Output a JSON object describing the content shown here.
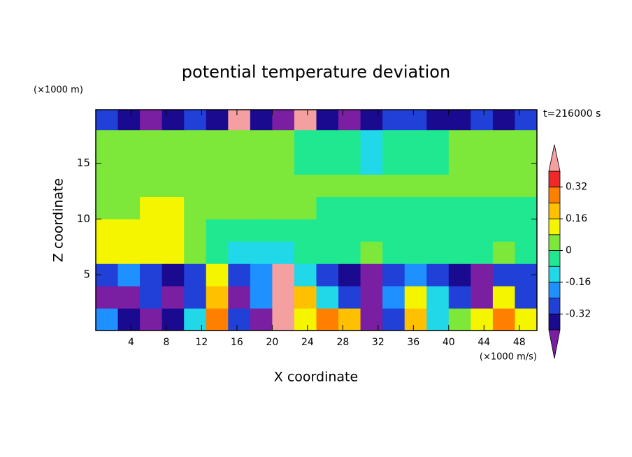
{
  "chart_data": {
    "type": "contour",
    "title": "potential temperature deviation",
    "xlabel": "X coordinate",
    "ylabel": "Z coordinate",
    "x_unit": "(×1000 m/s)",
    "y_unit": "(×1000 m)",
    "time_label": "t=216000 s",
    "xlim": [
      0,
      50
    ],
    "ylim": [
      0,
      19.8
    ],
    "xticks": [
      4,
      8,
      12,
      16,
      20,
      24,
      28,
      32,
      36,
      40,
      44,
      48
    ],
    "yticks": [
      5,
      10,
      15
    ],
    "x": [
      1.25,
      3.75,
      6.25,
      8.75,
      11.25,
      13.75,
      16.25,
      18.75,
      21.25,
      23.75,
      26.25,
      28.75,
      31.25,
      33.75,
      36.25,
      38.75,
      41.25,
      43.75,
      46.25,
      48.75
    ],
    "y": [
      1,
      3,
      5,
      7,
      9,
      11,
      13,
      15,
      17,
      19
    ],
    "values": [
      [
        -0.2,
        -0.36,
        -0.44,
        -0.36,
        -0.1,
        0.3,
        -0.3,
        -0.44,
        0.5,
        0.1,
        0.3,
        0.2,
        -0.44,
        -0.3,
        0.2,
        -0.1,
        0,
        0.1,
        0.3,
        0.1
      ],
      [
        -0.44,
        -0.44,
        -0.3,
        -0.44,
        -0.3,
        0.2,
        -0.44,
        -0.2,
        0.5,
        0.2,
        -0.1,
        -0.3,
        -0.44,
        -0.2,
        0.1,
        -0.1,
        -0.3,
        -0.44,
        0.1,
        -0.3
      ],
      [
        -0.3,
        -0.2,
        -0.3,
        -0.36,
        -0.3,
        0.1,
        -0.3,
        -0.2,
        0.5,
        -0.1,
        -0.3,
        -0.36,
        -0.44,
        -0.3,
        -0.2,
        -0.3,
        -0.36,
        -0.44,
        -0.3,
        -0.3
      ],
      [
        0.1,
        0.15,
        0.15,
        0.1,
        0.02,
        -0.05,
        -0.1,
        -0.12,
        -0.1,
        -0.05,
        -0.05,
        -0.05,
        0.02,
        -0.05,
        -0.05,
        -0.05,
        -0.05,
        -0.05,
        0.02,
        -0.05
      ],
      [
        0.1,
        0.15,
        0.12,
        0.1,
        0.05,
        -0.05,
        -0.05,
        -0.05,
        -0.05,
        -0.05,
        -0.05,
        -0.05,
        -0.05,
        -0.05,
        -0.05,
        -0.05,
        -0.05,
        -0.05,
        -0.05,
        -0.05
      ],
      [
        0.02,
        0.05,
        0.1,
        0.1,
        0.05,
        0.02,
        0.02,
        0.02,
        0.02,
        0.02,
        -0.05,
        -0.05,
        -0.05,
        -0.05,
        -0.05,
        -0.05,
        -0.05,
        -0.05,
        -0.05,
        -0.05
      ],
      [
        0.05,
        0.05,
        0.05,
        0.05,
        0.05,
        0.05,
        0.05,
        0.05,
        0.05,
        0.02,
        0.02,
        0.02,
        0.02,
        0.02,
        0.02,
        0.02,
        0.02,
        0.02,
        0.02,
        0.02
      ],
      [
        0.05,
        0.05,
        0.05,
        0.05,
        0.05,
        0.05,
        0.05,
        0.05,
        0.02,
        -0.05,
        -0.05,
        -0.05,
        -0.1,
        -0.05,
        -0.05,
        -0.05,
        0.05,
        0.05,
        0.05,
        0.05
      ],
      [
        0.05,
        0.05,
        0.05,
        0.05,
        0.05,
        0.05,
        0.05,
        0.05,
        0.05,
        -0.05,
        -0.05,
        -0.05,
        -0.1,
        -0.05,
        -0.05,
        -0.05,
        0.05,
        0.05,
        0.05,
        0.05
      ],
      [
        -0.3,
        -0.36,
        -0.44,
        -0.36,
        -0.3,
        -0.36,
        0.5,
        -0.36,
        -0.44,
        0.5,
        -0.36,
        -0.44,
        -0.36,
        -0.3,
        -0.3,
        -0.36,
        -0.36,
        -0.3,
        -0.36,
        -0.3
      ]
    ],
    "levels": [
      -0.4,
      -0.32,
      -0.24,
      -0.16,
      -0.08,
      0,
      0.08,
      0.16,
      0.24,
      0.32,
      0.4
    ],
    "colors": [
      "#7b1fa2",
      "#1a0a8f",
      "#2040d8",
      "#1e90ff",
      "#20d8e8",
      "#20e890",
      "#7ee83a",
      "#f5f500",
      "#ffc000",
      "#ff8000",
      "#f02828",
      "#f4a0a0"
    ],
    "colorbar_ticks": [
      0.32,
      0.16,
      0,
      -0.16,
      -0.32
    ]
  }
}
